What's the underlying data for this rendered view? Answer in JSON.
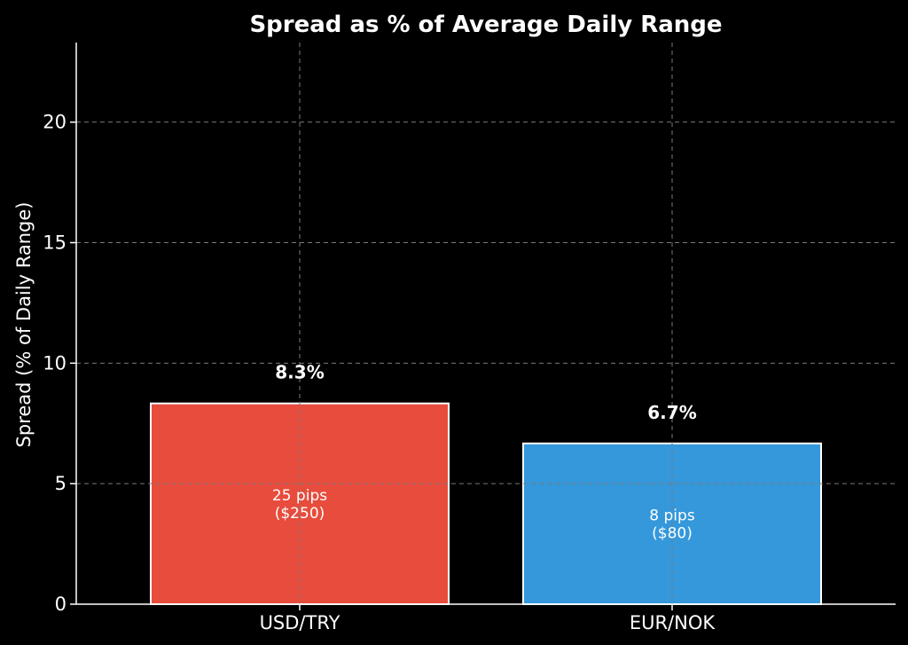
{
  "chart_data": {
    "type": "bar",
    "title": "Spread as % of Average Daily Range",
    "xlabel": "",
    "ylabel": "Spread (% of Daily Range)",
    "categories": [
      "USD/TRY",
      "EUR/NOK"
    ],
    "values": [
      8.33,
      6.67
    ],
    "value_labels": [
      "8.3%",
      "6.7%"
    ],
    "bar_annotations": [
      [
        "25 pips",
        "($250)"
      ],
      [
        "8 pips",
        "($80)"
      ]
    ],
    "bar_colors": [
      "#e74c3c",
      "#3498db"
    ],
    "ylim": [
      0,
      23.3
    ],
    "yticks": [
      0,
      5,
      10,
      15,
      20
    ],
    "grid": true,
    "legend": "none"
  }
}
